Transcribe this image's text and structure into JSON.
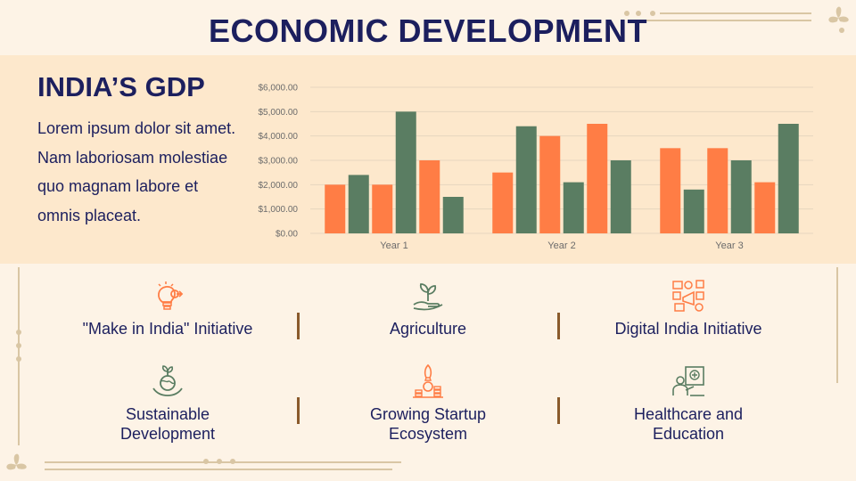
{
  "slide": {
    "title": "ECONOMIC DEVELOPMENT"
  },
  "gdp": {
    "heading": "INDIA’S GDP",
    "body": "Lorem ipsum dolor sit amet. Nam laboriosam molestiae quo magnam labore et omnis placeat."
  },
  "chart_data": {
    "type": "bar",
    "categories": [
      "Year 1",
      "Year 2",
      "Year 3"
    ],
    "series": [
      {
        "color": "#ff7d45",
        "values": [
          2000,
          2500,
          3500
        ]
      },
      {
        "color": "#5a7d62",
        "values": [
          2400,
          4400,
          1800
        ]
      },
      {
        "color": "#ff7d45",
        "values": [
          2000,
          4000,
          3500
        ]
      },
      {
        "color": "#5a7d62",
        "values": [
          5000,
          2100,
          3000
        ]
      },
      {
        "color": "#ff7d45",
        "values": [
          3000,
          4500,
          2100
        ]
      },
      {
        "color": "#5a7d62",
        "values": [
          1500,
          3000,
          4500
        ]
      }
    ],
    "y_ticks": [
      "$0.00",
      "$1,000.00",
      "$2,000.00",
      "$3,000.00",
      "$4,000.00",
      "$5,000.00",
      "$6,000.00"
    ],
    "ylim": [
      0,
      6000
    ],
    "grid": true,
    "title": "",
    "xlabel": "",
    "ylabel": ""
  },
  "features": [
    {
      "label": "\"Make in India\" Initiative",
      "icon": "lightbulb-gear-icon"
    },
    {
      "label": "Agriculture",
      "icon": "plant-hand-icon"
    },
    {
      "label": "Digital India Initiative",
      "icon": "digital-devices-icon"
    },
    {
      "label": "Sustainable Development",
      "icon": "globe-sprout-icon"
    },
    {
      "label": "Growing Startup Ecosystem",
      "icon": "rocket-coins-icon"
    },
    {
      "label": "Healthcare and Education",
      "icon": "doctor-board-icon"
    }
  ],
  "colors": {
    "navy": "#1c1f5e",
    "orange": "#ff7d45",
    "green": "#5a7d62",
    "band": "#fde8cc",
    "background": "#fdf3e6",
    "divider": "#8a5a2b"
  }
}
